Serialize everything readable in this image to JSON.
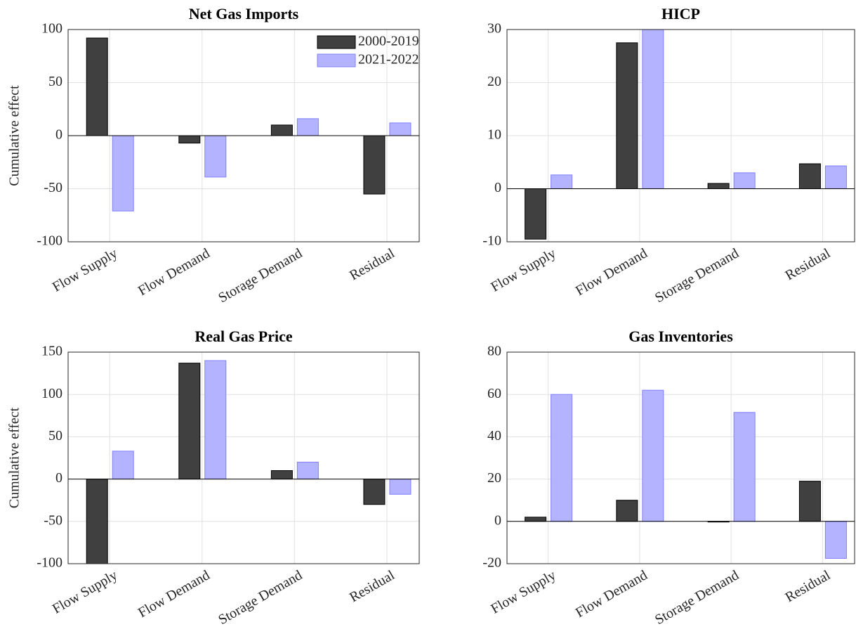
{
  "chart_data": [
    {
      "type": "bar",
      "title": "Net Gas Imports",
      "ylabel": "Cumulative effect",
      "categories": [
        "Flow Supply",
        "Flow Demand",
        "Storage Demand",
        "Residual"
      ],
      "series": [
        {
          "name": "2000-2019",
          "color": "#404040",
          "values": [
            92,
            -7,
            10,
            -55
          ]
        },
        {
          "name": "2021-2022",
          "color": "#b3b3ff",
          "values": [
            -71,
            -39,
            16,
            12
          ]
        }
      ],
      "ylim": [
        -100,
        100
      ],
      "yticks": [
        -100,
        -50,
        0,
        50,
        100
      ],
      "grid": true,
      "legend": "upper right"
    },
    {
      "type": "bar",
      "title": "HICP",
      "categories": [
        "Flow Supply",
        "Flow Demand",
        "Storage Demand",
        "Residual"
      ],
      "series": [
        {
          "color": "#404040",
          "values": [
            -9.5,
            27.5,
            1,
            4.7
          ]
        },
        {
          "color": "#b3b3ff",
          "values": [
            2.6,
            30,
            3,
            4.3
          ]
        }
      ],
      "ylim": [
        -10,
        30
      ],
      "yticks": [
        -10,
        0,
        10,
        20,
        30
      ],
      "grid": true
    },
    {
      "type": "bar",
      "title": "Real Gas Price",
      "ylabel": "Cumulative effect",
      "categories": [
        "Flow Supply",
        "Flow Demand",
        "Storage Demand",
        "Residual"
      ],
      "series": [
        {
          "color": "#404040",
          "values": [
            -100,
            137,
            10,
            -30
          ]
        },
        {
          "color": "#b3b3ff",
          "values": [
            33,
            140,
            20,
            -18
          ]
        }
      ],
      "ylim": [
        -100,
        150
      ],
      "yticks": [
        -100,
        -50,
        0,
        50,
        100,
        150
      ],
      "grid": true
    },
    {
      "type": "bar",
      "title": "Gas Inventories",
      "categories": [
        "Flow Supply",
        "Flow Demand",
        "Storage Demand",
        "Residual"
      ],
      "series": [
        {
          "color": "#404040",
          "values": [
            2,
            10,
            -0.3,
            19
          ]
        },
        {
          "color": "#b3b3ff",
          "values": [
            60,
            62,
            51.5,
            -17.5
          ]
        }
      ],
      "ylim": [
        -20,
        80
      ],
      "yticks": [
        -20,
        0,
        20,
        40,
        60,
        80
      ],
      "grid": true
    }
  ]
}
